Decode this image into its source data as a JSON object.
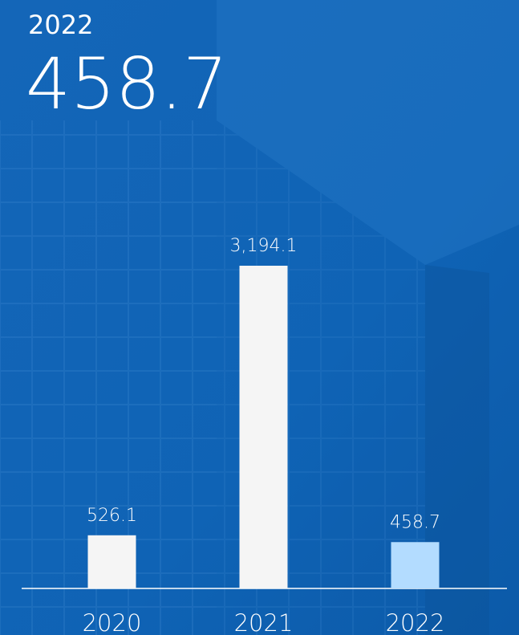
{
  "chart_data": {
    "type": "bar",
    "categories": [
      "2020",
      "2021",
      "2022"
    ],
    "values": [
      526.1,
      3194.1,
      458.7
    ],
    "value_labels": [
      "526.1",
      "3,194.1",
      "458.7"
    ],
    "colors": [
      "#f5f5f5",
      "#f5f5f5",
      "#b3dcff"
    ]
  }
}
